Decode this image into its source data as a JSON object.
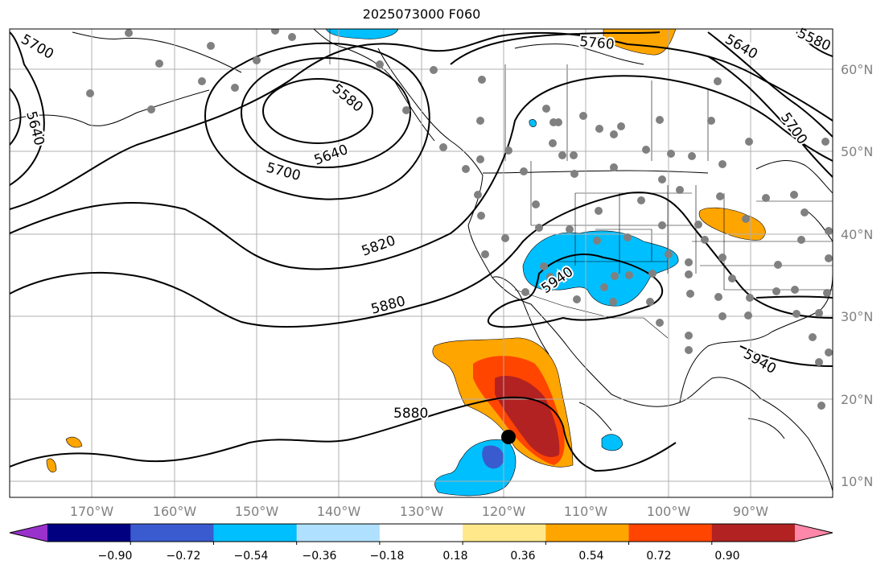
{
  "title": "2025073000 F060",
  "lat_labels": [
    "60°N",
    "50°N",
    "40°N",
    "30°N",
    "20°N",
    "10°N"
  ],
  "lon_labels": [
    "170°W",
    "160°W",
    "150°W",
    "140°W",
    "130°W",
    "120°W",
    "110°W",
    "100°W",
    "90°W"
  ],
  "contours": {
    "5640": "5640",
    "5700": "5700",
    "5580": "5580",
    "5760": "5760",
    "5820": "5820",
    "5880": "5880",
    "5940": "5940"
  },
  "colorbar": {
    "ticks": [
      "−0.90",
      "−0.72",
      "−0.54",
      "−0.36",
      "−0.18",
      "0.18",
      "0.36",
      "0.54",
      "0.72",
      "0.90"
    ],
    "colors": [
      "#9932cc",
      "#000080",
      "#3a5bd0",
      "#00bfff",
      "#b0e0ff",
      "#ffffff",
      "#ffe88a",
      "#ffa500",
      "#ff4500",
      "#b22222",
      "#ff88aa"
    ]
  },
  "fill_colors": {
    "orange": "#ffa500",
    "red_orange": "#ff4500",
    "dark_red": "#b22222",
    "sky_blue": "#00bfff",
    "royal_blue": "#3a5bd0",
    "station_gray": "#808080"
  }
}
